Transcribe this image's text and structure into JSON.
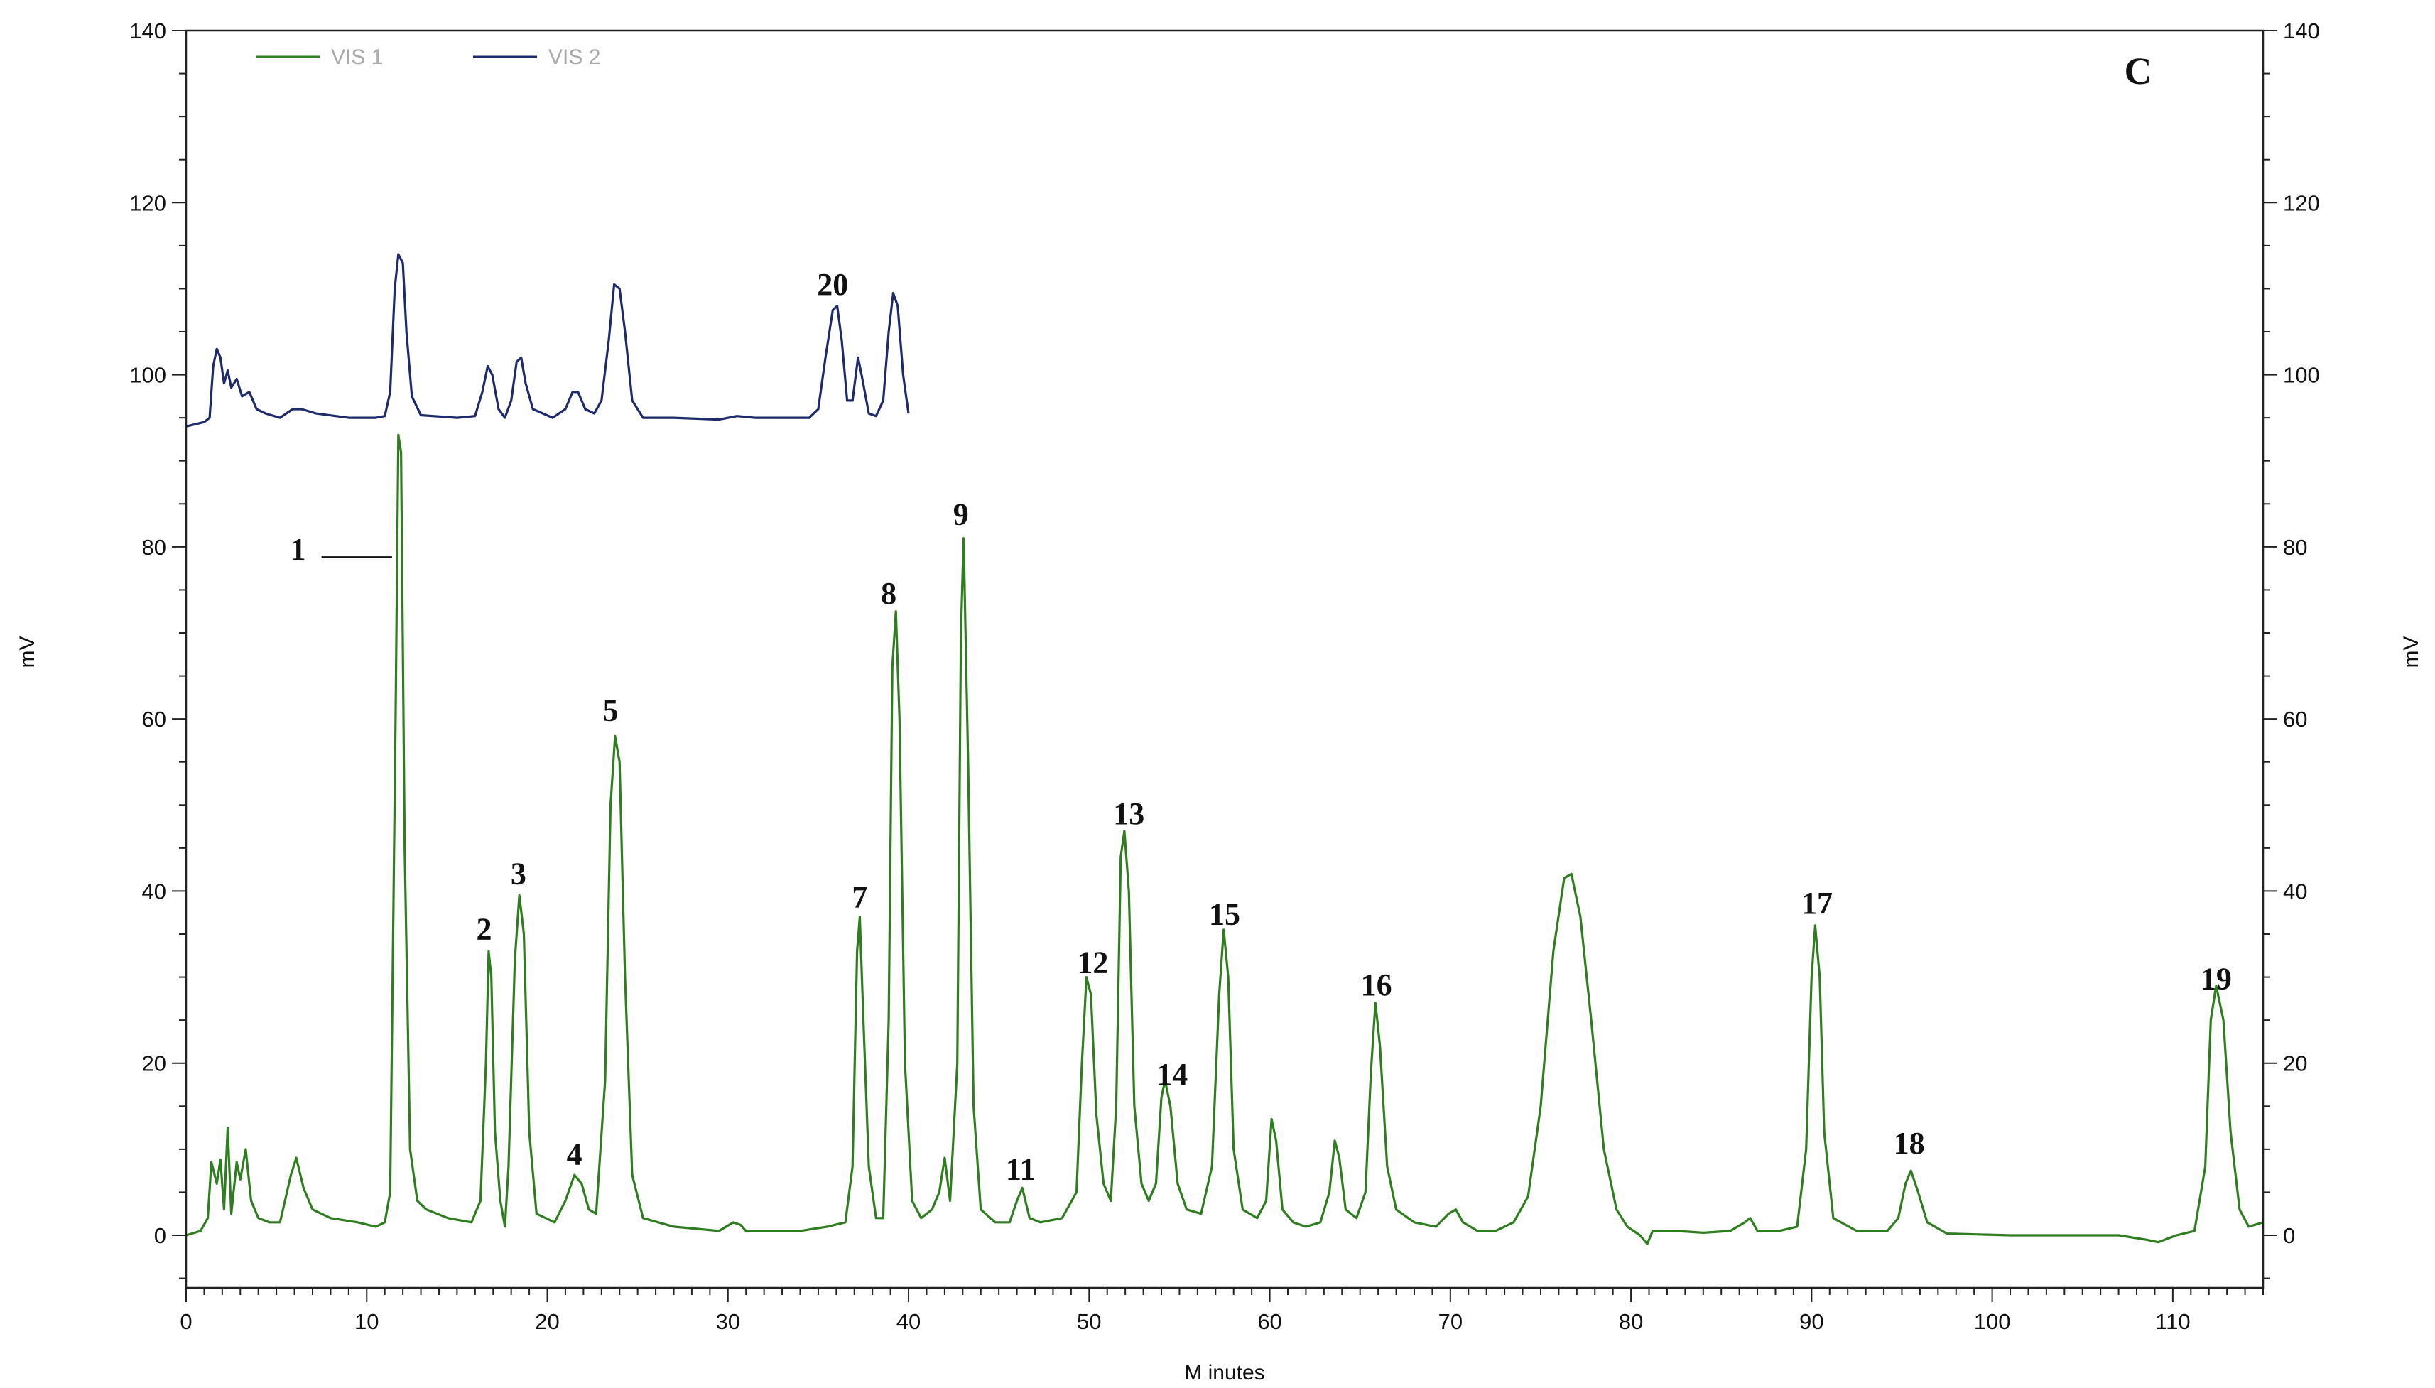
{
  "chart_data": {
    "type": "line",
    "panel_label": "C",
    "xlabel": "M inutes",
    "ylabel_left": "mV",
    "ylabel_right": "mV",
    "xlim": [
      0,
      115
    ],
    "ylim": [
      -6,
      140
    ],
    "x_ticks": [
      0,
      10,
      20,
      30,
      40,
      50,
      60,
      70,
      80,
      90,
      100,
      110
    ],
    "y_ticks": [
      0,
      20,
      40,
      60,
      80,
      100,
      120,
      140
    ],
    "legend_position": "top-left",
    "series": [
      {
        "name": "VIS 1",
        "color": "#2e7d1e",
        "points": [
          [
            0,
            0
          ],
          [
            0.8,
            0.5
          ],
          [
            1.2,
            2
          ],
          [
            1.4,
            8.5
          ],
          [
            1.7,
            6
          ],
          [
            1.9,
            8.8
          ],
          [
            2.1,
            3
          ],
          [
            2.3,
            12.5
          ],
          [
            2.5,
            2.5
          ],
          [
            2.8,
            8.5
          ],
          [
            3.0,
            6.5
          ],
          [
            3.3,
            10
          ],
          [
            3.6,
            4
          ],
          [
            4.0,
            2
          ],
          [
            4.6,
            1.5
          ],
          [
            5.2,
            1.5
          ],
          [
            5.8,
            7
          ],
          [
            6.1,
            9
          ],
          [
            6.5,
            5.5
          ],
          [
            7.0,
            3
          ],
          [
            8.0,
            2
          ],
          [
            9.5,
            1.5
          ],
          [
            10.5,
            1
          ],
          [
            11.0,
            1.5
          ],
          [
            11.3,
            5
          ],
          [
            11.6,
            60
          ],
          [
            11.75,
            93
          ],
          [
            11.9,
            91
          ],
          [
            12.1,
            45
          ],
          [
            12.4,
            10
          ],
          [
            12.8,
            4
          ],
          [
            13.3,
            3
          ],
          [
            14.5,
            2
          ],
          [
            15.8,
            1.5
          ],
          [
            16.3,
            4
          ],
          [
            16.6,
            20
          ],
          [
            16.75,
            33
          ],
          [
            16.9,
            30
          ],
          [
            17.1,
            12
          ],
          [
            17.4,
            4
          ],
          [
            17.65,
            1
          ],
          [
            17.85,
            8
          ],
          [
            18.2,
            32
          ],
          [
            18.45,
            39.5
          ],
          [
            18.7,
            35
          ],
          [
            19.0,
            12
          ],
          [
            19.4,
            2.5
          ],
          [
            20.4,
            1.5
          ],
          [
            21.0,
            4
          ],
          [
            21.5,
            7
          ],
          [
            21.9,
            6
          ],
          [
            22.3,
            3
          ],
          [
            22.7,
            2.5
          ],
          [
            23.2,
            18
          ],
          [
            23.5,
            50
          ],
          [
            23.75,
            58
          ],
          [
            24.0,
            55
          ],
          [
            24.3,
            30
          ],
          [
            24.7,
            7
          ],
          [
            25.3,
            2
          ],
          [
            27.0,
            1
          ],
          [
            29.5,
            0.5
          ],
          [
            30.3,
            1.5
          ],
          [
            30.7,
            1.2
          ],
          [
            31.0,
            0.5
          ],
          [
            34.0,
            0.5
          ],
          [
            35.5,
            1
          ],
          [
            36.5,
            1.5
          ],
          [
            36.9,
            8
          ],
          [
            37.15,
            33
          ],
          [
            37.3,
            37
          ],
          [
            37.5,
            25
          ],
          [
            37.8,
            8
          ],
          [
            38.2,
            2
          ],
          [
            38.6,
            2
          ],
          [
            38.9,
            25
          ],
          [
            39.1,
            66
          ],
          [
            39.3,
            72.5
          ],
          [
            39.5,
            60
          ],
          [
            39.8,
            20
          ],
          [
            40.2,
            4
          ],
          [
            40.7,
            2
          ],
          [
            41.3,
            3
          ],
          [
            41.7,
            5
          ],
          [
            42.0,
            9
          ],
          [
            42.3,
            4
          ],
          [
            42.7,
            20
          ],
          [
            42.9,
            70
          ],
          [
            43.05,
            81
          ],
          [
            43.3,
            55
          ],
          [
            43.6,
            15
          ],
          [
            44.0,
            3
          ],
          [
            44.8,
            1.5
          ],
          [
            45.6,
            1.5
          ],
          [
            46.0,
            4
          ],
          [
            46.3,
            5.5
          ],
          [
            46.7,
            2
          ],
          [
            47.3,
            1.5
          ],
          [
            48.5,
            2
          ],
          [
            49.3,
            5
          ],
          [
            49.6,
            20
          ],
          [
            49.85,
            30
          ],
          [
            50.1,
            28
          ],
          [
            50.4,
            14
          ],
          [
            50.8,
            6
          ],
          [
            51.2,
            4
          ],
          [
            51.5,
            15
          ],
          [
            51.75,
            44
          ],
          [
            51.95,
            47
          ],
          [
            52.2,
            40
          ],
          [
            52.5,
            15
          ],
          [
            52.9,
            6
          ],
          [
            53.3,
            4
          ],
          [
            53.7,
            6
          ],
          [
            54.0,
            16
          ],
          [
            54.2,
            18
          ],
          [
            54.5,
            15
          ],
          [
            54.9,
            6
          ],
          [
            55.4,
            3
          ],
          [
            56.2,
            2.5
          ],
          [
            56.8,
            8
          ],
          [
            57.2,
            28
          ],
          [
            57.45,
            35.5
          ],
          [
            57.7,
            30
          ],
          [
            58.0,
            10
          ],
          [
            58.5,
            3
          ],
          [
            59.3,
            2
          ],
          [
            59.8,
            4
          ],
          [
            60.1,
            13.5
          ],
          [
            60.35,
            11
          ],
          [
            60.7,
            3
          ],
          [
            61.3,
            1.5
          ],
          [
            62.0,
            1
          ],
          [
            62.8,
            1.5
          ],
          [
            63.3,
            5
          ],
          [
            63.6,
            11
          ],
          [
            63.85,
            9
          ],
          [
            64.2,
            3
          ],
          [
            64.8,
            2
          ],
          [
            65.3,
            5
          ],
          [
            65.6,
            19
          ],
          [
            65.85,
            27
          ],
          [
            66.1,
            22
          ],
          [
            66.5,
            8
          ],
          [
            67.0,
            3
          ],
          [
            68.0,
            1.5
          ],
          [
            69.2,
            1
          ],
          [
            69.9,
            2.5
          ],
          [
            70.3,
            3
          ],
          [
            70.7,
            1.5
          ],
          [
            71.5,
            0.5
          ],
          [
            72.5,
            0.5
          ],
          [
            73.5,
            1.5
          ],
          [
            74.3,
            4.5
          ],
          [
            75.0,
            15
          ],
          [
            75.7,
            33
          ],
          [
            76.3,
            41.5
          ],
          [
            76.7,
            42
          ],
          [
            77.2,
            37
          ],
          [
            77.8,
            25
          ],
          [
            78.5,
            10
          ],
          [
            79.2,
            3
          ],
          [
            79.8,
            1
          ],
          [
            80.5,
            0
          ],
          [
            80.9,
            -1
          ],
          [
            81.2,
            0.5
          ],
          [
            82.5,
            0.5
          ],
          [
            84.0,
            0.3
          ],
          [
            85.5,
            0.5
          ],
          [
            86.3,
            1.5
          ],
          [
            86.6,
            2
          ],
          [
            87.0,
            0.5
          ],
          [
            88.2,
            0.5
          ],
          [
            89.2,
            1
          ],
          [
            89.7,
            10
          ],
          [
            90.0,
            30
          ],
          [
            90.2,
            36
          ],
          [
            90.45,
            30
          ],
          [
            90.7,
            12
          ],
          [
            91.2,
            2
          ],
          [
            92.5,
            0.5
          ],
          [
            94.2,
            0.5
          ],
          [
            94.8,
            2
          ],
          [
            95.2,
            6
          ],
          [
            95.5,
            7.5
          ],
          [
            95.9,
            5
          ],
          [
            96.4,
            1.5
          ],
          [
            97.5,
            0.2
          ],
          [
            101.0,
            0
          ],
          [
            104.5,
            0
          ],
          [
            107.0,
            0
          ],
          [
            108.5,
            -0.5
          ],
          [
            109.2,
            -0.8
          ],
          [
            110.2,
            0
          ],
          [
            111.2,
            0.5
          ],
          [
            111.8,
            8
          ],
          [
            112.1,
            25
          ],
          [
            112.4,
            29
          ],
          [
            112.8,
            25
          ],
          [
            113.2,
            12
          ],
          [
            113.7,
            3
          ],
          [
            114.2,
            1
          ],
          [
            115.0,
            1.5
          ]
        ]
      },
      {
        "name": "VIS 2",
        "color": "#1d2a6b",
        "points": [
          [
            0,
            94
          ],
          [
            1.0,
            94.5
          ],
          [
            1.3,
            95
          ],
          [
            1.5,
            101
          ],
          [
            1.7,
            103
          ],
          [
            1.9,
            102
          ],
          [
            2.1,
            99
          ],
          [
            2.3,
            100.5
          ],
          [
            2.5,
            98.5
          ],
          [
            2.8,
            99.5
          ],
          [
            3.1,
            97.5
          ],
          [
            3.5,
            98
          ],
          [
            3.9,
            96
          ],
          [
            4.4,
            95.5
          ],
          [
            5.2,
            95
          ],
          [
            5.9,
            96
          ],
          [
            6.4,
            96
          ],
          [
            7.2,
            95.5
          ],
          [
            9.0,
            95
          ],
          [
            10.5,
            95
          ],
          [
            11.0,
            95.2
          ],
          [
            11.3,
            98
          ],
          [
            11.55,
            110
          ],
          [
            11.75,
            114
          ],
          [
            12.0,
            113
          ],
          [
            12.2,
            105
          ],
          [
            12.5,
            97.5
          ],
          [
            13.0,
            95.3
          ],
          [
            15.0,
            95
          ],
          [
            16.0,
            95.2
          ],
          [
            16.4,
            98
          ],
          [
            16.7,
            101
          ],
          [
            16.95,
            100
          ],
          [
            17.3,
            96
          ],
          [
            17.65,
            95
          ],
          [
            18.0,
            97
          ],
          [
            18.3,
            101.5
          ],
          [
            18.55,
            102
          ],
          [
            18.8,
            99
          ],
          [
            19.2,
            96
          ],
          [
            20.3,
            95
          ],
          [
            21.0,
            96
          ],
          [
            21.4,
            98
          ],
          [
            21.7,
            98
          ],
          [
            22.1,
            96
          ],
          [
            22.6,
            95.5
          ],
          [
            23.0,
            97
          ],
          [
            23.4,
            104
          ],
          [
            23.7,
            110.5
          ],
          [
            24.0,
            110
          ],
          [
            24.3,
            105
          ],
          [
            24.7,
            97
          ],
          [
            25.3,
            95
          ],
          [
            27.0,
            95
          ],
          [
            29.5,
            94.8
          ],
          [
            30.5,
            95.2
          ],
          [
            31.5,
            95
          ],
          [
            34.5,
            95
          ],
          [
            35.0,
            96
          ],
          [
            35.4,
            102
          ],
          [
            35.8,
            107.5
          ],
          [
            36.05,
            108
          ],
          [
            36.3,
            104
          ],
          [
            36.6,
            97
          ],
          [
            36.9,
            97
          ],
          [
            37.2,
            102
          ],
          [
            37.4,
            100
          ],
          [
            37.8,
            95.5
          ],
          [
            38.2,
            95.2
          ],
          [
            38.6,
            97
          ],
          [
            38.9,
            105
          ],
          [
            39.15,
            109.5
          ],
          [
            39.4,
            108
          ],
          [
            39.7,
            100
          ],
          [
            40.0,
            95.5
          ]
        ]
      }
    ],
    "annotations": [
      {
        "text": "1",
        "x": 6.2,
        "y": 78.5,
        "leader_from_x": 7.5,
        "leader_to_x": 11.4,
        "leader_y": 78.8
      },
      {
        "text": "2",
        "x": 16.5,
        "y": 34.4
      },
      {
        "text": "3",
        "x": 18.4,
        "y": 40.8
      },
      {
        "text": "4",
        "x": 21.5,
        "y": 8.2
      },
      {
        "text": "5",
        "x": 23.5,
        "y": 59.8
      },
      {
        "text": "7",
        "x": 37.3,
        "y": 38.1
      },
      {
        "text": "8",
        "x": 38.9,
        "y": 73.4
      },
      {
        "text": "9",
        "x": 42.9,
        "y": 82.6
      },
      {
        "text": "11",
        "x": 46.2,
        "y": 6.5
      },
      {
        "text": "12",
        "x": 50.2,
        "y": 30.5
      },
      {
        "text": "13",
        "x": 52.2,
        "y": 47.8
      },
      {
        "text": "14",
        "x": 54.6,
        "y": 17.5
      },
      {
        "text": "15",
        "x": 57.5,
        "y": 36.1
      },
      {
        "text": "16",
        "x": 65.9,
        "y": 27.9
      },
      {
        "text": "17",
        "x": 90.3,
        "y": 37.4
      },
      {
        "text": "18",
        "x": 95.4,
        "y": 9.5
      },
      {
        "text": "19",
        "x": 112.4,
        "y": 28.6
      },
      {
        "text": "20",
        "x": 35.8,
        "y": 109.3
      }
    ]
  }
}
